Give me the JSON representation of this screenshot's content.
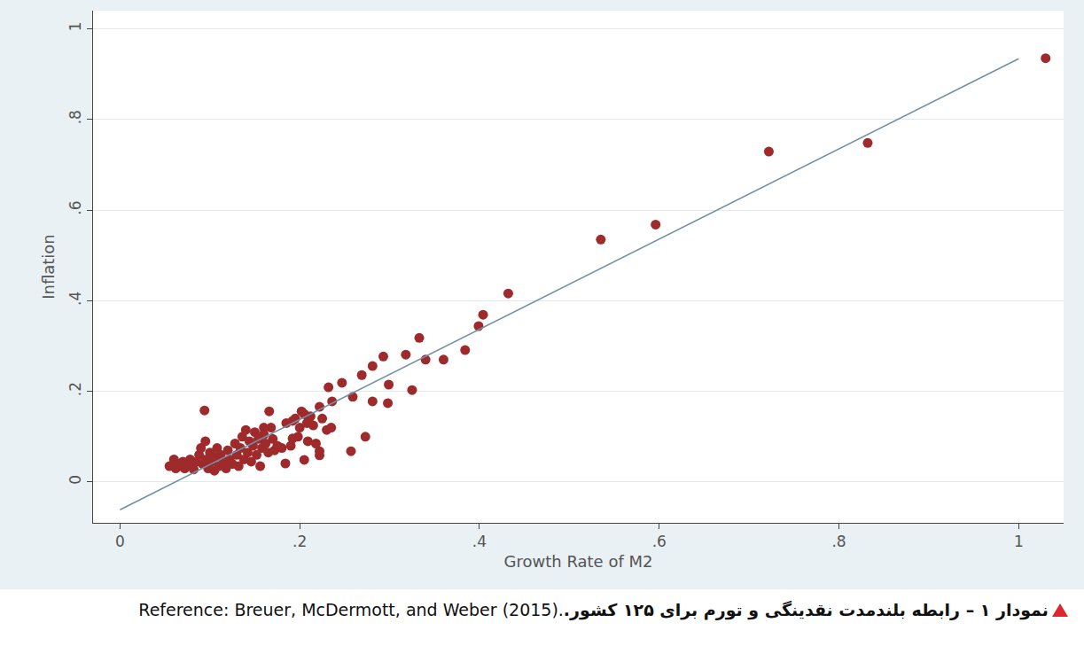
{
  "chart_data": {
    "type": "scatter",
    "caption": "نمودار ۱ – رابطه بلندمدت نقدینگی و تورم برای ۱۲۵ کشور.",
    "source": "Reference: Breuer, McDermott, and Weber (2015).",
    "x_label": "Growth Rate of M2",
    "y_label": "Inflation",
    "xlim": [
      -0.03,
      1.05
    ],
    "ylim": [
      -0.09,
      1.04
    ],
    "xticks": [
      0,
      {
        "value": 0.2,
        "label": ".2"
      },
      {
        "value": 0.4,
        "label": ".4"
      },
      {
        "value": 0.6,
        "label": ".6"
      },
      {
        "value": 0.8,
        "label": ".8"
      },
      1
    ],
    "yticks": [
      0,
      {
        "value": 0.2,
        "label": ".2"
      },
      {
        "value": 0.4,
        "label": ".4"
      },
      {
        "value": 0.6,
        "label": ".6"
      },
      {
        "value": 0.8,
        "label": ".8"
      },
      1
    ],
    "grid": true,
    "series": [
      {
        "type": "scatter",
        "marker": "circle",
        "color": "#9e2a2b",
        "x": [
          1.03,
          0.832,
          0.722,
          0.596,
          0.535,
          0.432,
          0.404,
          0.399,
          0.384,
          0.36,
          0.34,
          0.333,
          0.318,
          0.325,
          0.299,
          0.293,
          0.281,
          0.269,
          0.298,
          0.281,
          0.273,
          0.257,
          0.259,
          0.247,
          0.232,
          0.236,
          0.222,
          0.23,
          0.222,
          0.222,
          0.205,
          0.209,
          0.212,
          0.202,
          0.094,
          0.166,
          0.184,
          0.192,
          0.192,
          0.055,
          0.06,
          0.062,
          0.065,
          0.068,
          0.07,
          0.072,
          0.075,
          0.078,
          0.08,
          0.082,
          0.085,
          0.088,
          0.09,
          0.092,
          0.095,
          0.096,
          0.098,
          0.1,
          0.102,
          0.105,
          0.106,
          0.108,
          0.11,
          0.112,
          0.115,
          0.118,
          0.12,
          0.122,
          0.125,
          0.128,
          0.13,
          0.132,
          0.134,
          0.136,
          0.138,
          0.14,
          0.142,
          0.144,
          0.146,
          0.148,
          0.15,
          0.152,
          0.154,
          0.156,
          0.158,
          0.16,
          0.162,
          0.165,
          0.168,
          0.17,
          0.172,
          0.175,
          0.18,
          0.185,
          0.19,
          0.195,
          0.198,
          0.2,
          0.205,
          0.208,
          0.21,
          0.215,
          0.218,
          0.225,
          0.235,
          0.16
        ],
        "values": [
          0.935,
          0.748,
          0.729,
          0.568,
          0.535,
          0.416,
          0.369,
          0.344,
          0.291,
          0.27,
          0.27,
          0.318,
          0.281,
          0.203,
          0.215,
          0.277,
          0.256,
          0.236,
          0.174,
          0.178,
          0.1,
          0.068,
          0.188,
          0.219,
          0.209,
          0.178,
          0.166,
          0.115,
          0.068,
          0.059,
          0.049,
          0.09,
          0.145,
          0.156,
          0.158,
          0.156,
          0.041,
          0.096,
          0.135,
          0.035,
          0.05,
          0.03,
          0.04,
          0.035,
          0.045,
          0.03,
          0.04,
          0.05,
          0.035,
          0.028,
          0.045,
          0.06,
          0.075,
          0.04,
          0.09,
          0.05,
          0.03,
          0.065,
          0.045,
          0.025,
          0.055,
          0.075,
          0.035,
          0.06,
          0.045,
          0.03,
          0.07,
          0.05,
          0.04,
          0.085,
          0.06,
          0.035,
          0.075,
          0.1,
          0.05,
          0.115,
          0.065,
          0.09,
          0.045,
          0.08,
          0.11,
          0.06,
          0.095,
          0.035,
          0.075,
          0.105,
          0.085,
          0.065,
          0.12,
          0.095,
          0.07,
          0.08,
          0.075,
          0.13,
          0.08,
          0.14,
          0.1,
          0.12,
          0.15,
          0.13,
          0.14,
          0.125,
          0.085,
          0.14,
          0.12,
          0.12
        ]
      },
      {
        "type": "line",
        "line_style": "solid",
        "color": "#7390a8",
        "x": [
          0,
          1
        ],
        "values": [
          -0.061,
          0.934
        ]
      }
    ]
  }
}
